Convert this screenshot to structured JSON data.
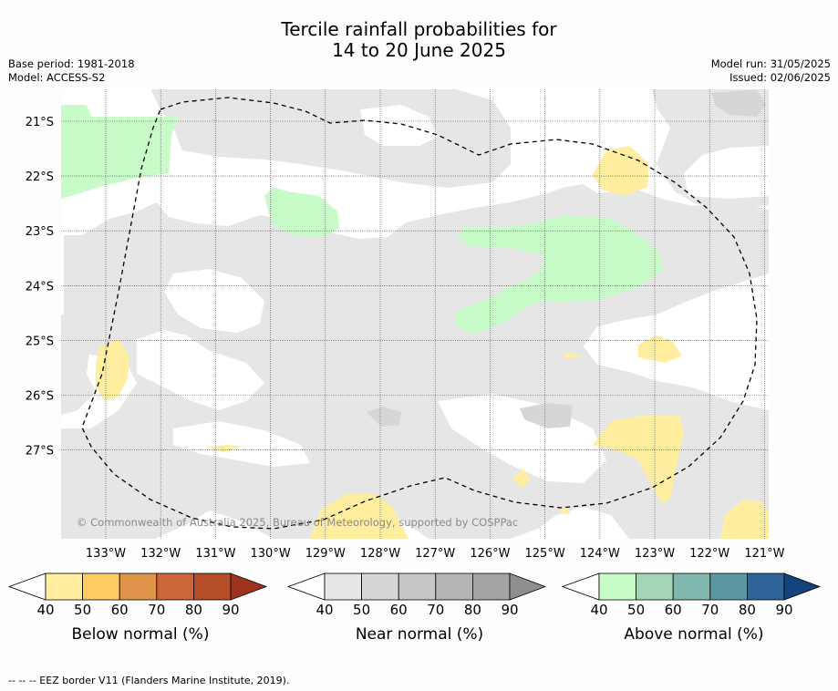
{
  "title": {
    "line1": "Tercile rainfall probabilities for",
    "line2": "14 to 20 June 2025"
  },
  "meta": {
    "base_period": "Base period: 1981-2018",
    "model": "Model: ACCESS-S2",
    "model_run": "Model run: 31/05/2025",
    "issued": "Issued: 02/06/2025"
  },
  "map": {
    "latitude_labels": [
      "21°S",
      "22°S",
      "23°S",
      "24°S",
      "25°S",
      "26°S",
      "27°S"
    ],
    "longitude_labels": [
      "133°W",
      "132°W",
      "131°W",
      "130°W",
      "129°W",
      "128°W",
      "127°W",
      "126°W",
      "125°W",
      "124°W",
      "123°W",
      "122°W",
      "121°W"
    ],
    "credit": "© Commonwealth of Australia 2025, Bureau of Meteorology, supported by COSPPac",
    "colors": {
      "near_normal_fill": "#e6e6e6",
      "near_normal_dark": "#d6d6d6",
      "below_normal_fill": "#ffeda0",
      "above_normal_fill": "#c7fcc9",
      "eez_line": "#000000",
      "gridline": "#555555"
    }
  },
  "legends": [
    {
      "caption": "Below normal (%)",
      "ticks": [
        "40",
        "50",
        "60",
        "70",
        "80",
        "90"
      ],
      "colors": [
        "#ffffff",
        "#ffeda0",
        "#fecb63",
        "#e0954a",
        "#cc6637",
        "#b54d28",
        "#9e3420"
      ]
    },
    {
      "caption": "Near normal (%)",
      "ticks": [
        "40",
        "50",
        "60",
        "70",
        "80",
        "90"
      ],
      "colors": [
        "#ffffff",
        "#e6e6e6",
        "#d6d6d6",
        "#c6c6c6",
        "#b5b5b5",
        "#a4a4a4",
        "#8e8e8e"
      ]
    },
    {
      "caption": "Above normal (%)",
      "ticks": [
        "40",
        "50",
        "60",
        "70",
        "80",
        "90"
      ],
      "colors": [
        "#ffffff",
        "#c7fcc9",
        "#a3d6b6",
        "#80b8b0",
        "#5b97a3",
        "#2f6498",
        "#14427a"
      ]
    }
  ],
  "footnote": "--  --  -- EEZ border V11 (Flanders Marine Institute, 2019)."
}
